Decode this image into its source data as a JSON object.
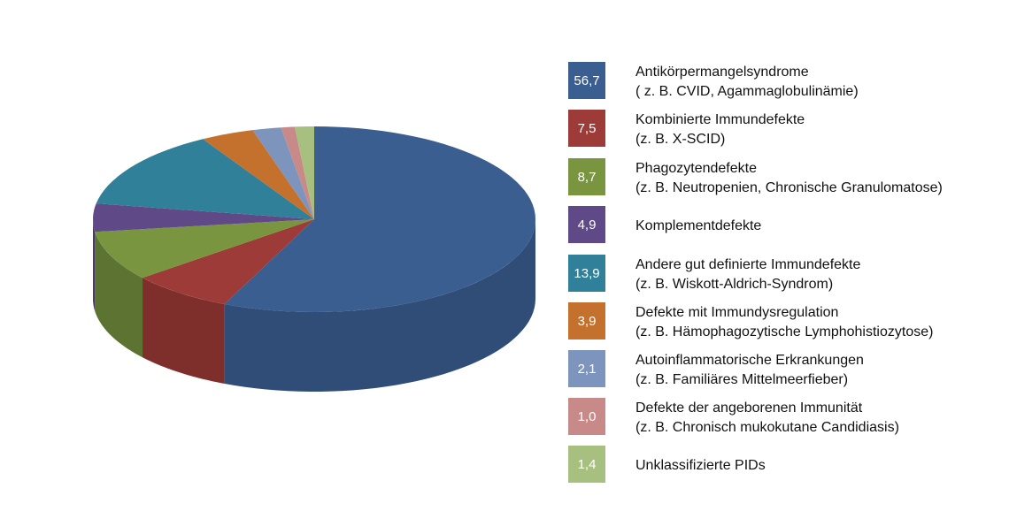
{
  "chart_data": {
    "type": "pie",
    "title": "",
    "slices": [
      {
        "value": 56.7,
        "value_label": "56,7",
        "label_line1": "Antikörpermangelsyndrome",
        "label_line2": "( z. B. CVID, Agammaglobulinämie)",
        "color": "#3b5e91",
        "side_color": "#304d78"
      },
      {
        "value": 7.5,
        "value_label": "7,5",
        "label_line1": "Kombinierte Immundefekte",
        "label_line2": "(z. B. X-SCID)",
        "color": "#9c3b37",
        "side_color": "#7e2f2c"
      },
      {
        "value": 8.7,
        "value_label": "8,7",
        "label_line1": "Phagozytendefekte",
        "label_line2": "(z. B. Neutropenien, Chronische Granulomatose)",
        "color": "#7a9540",
        "side_color": "#5d7332"
      },
      {
        "value": 4.9,
        "value_label": "4,9",
        "label_line1": "Komplementdefekte",
        "label_line2": "",
        "color": "#5f4a87",
        "side_color": "#4a3a6a"
      },
      {
        "value": 13.9,
        "value_label": "13,9",
        "label_line1": "Andere gut definierte Immundefekte",
        "label_line2": "(z. B. Wiskott-Aldrich-Syndrom)",
        "color": "#2f8098",
        "side_color": "#25657a"
      },
      {
        "value": 3.9,
        "value_label": "3,9",
        "label_line1": "Defekte mit Immundysregulation",
        "label_line2": "(z. B. Hämophagozytische Lymphohistiozytose)",
        "color": "#c5712e",
        "side_color": "#a05a24"
      },
      {
        "value": 2.1,
        "value_label": "2,1",
        "label_line1": "Autoinflammatorische Erkrankungen",
        "label_line2": "(z. B. Familiäres Mittelmeerfieber)",
        "color": "#7d94bd",
        "side_color": "#64789c"
      },
      {
        "value": 1.0,
        "value_label": "1,0",
        "label_line1": "Defekte der angeborenen Immunität",
        "label_line2": "(z. B. Chronisch mukokutane Candidiasis)",
        "color": "#c88a88",
        "side_color": "#a56e6c"
      },
      {
        "value": 1.4,
        "value_label": "1,4",
        "label_line1": "Unklassifizierte PIDs",
        "label_line2": "",
        "color": "#a7c07f",
        "side_color": "#87a063"
      }
    ],
    "style": "3d",
    "legend_position": "right"
  }
}
